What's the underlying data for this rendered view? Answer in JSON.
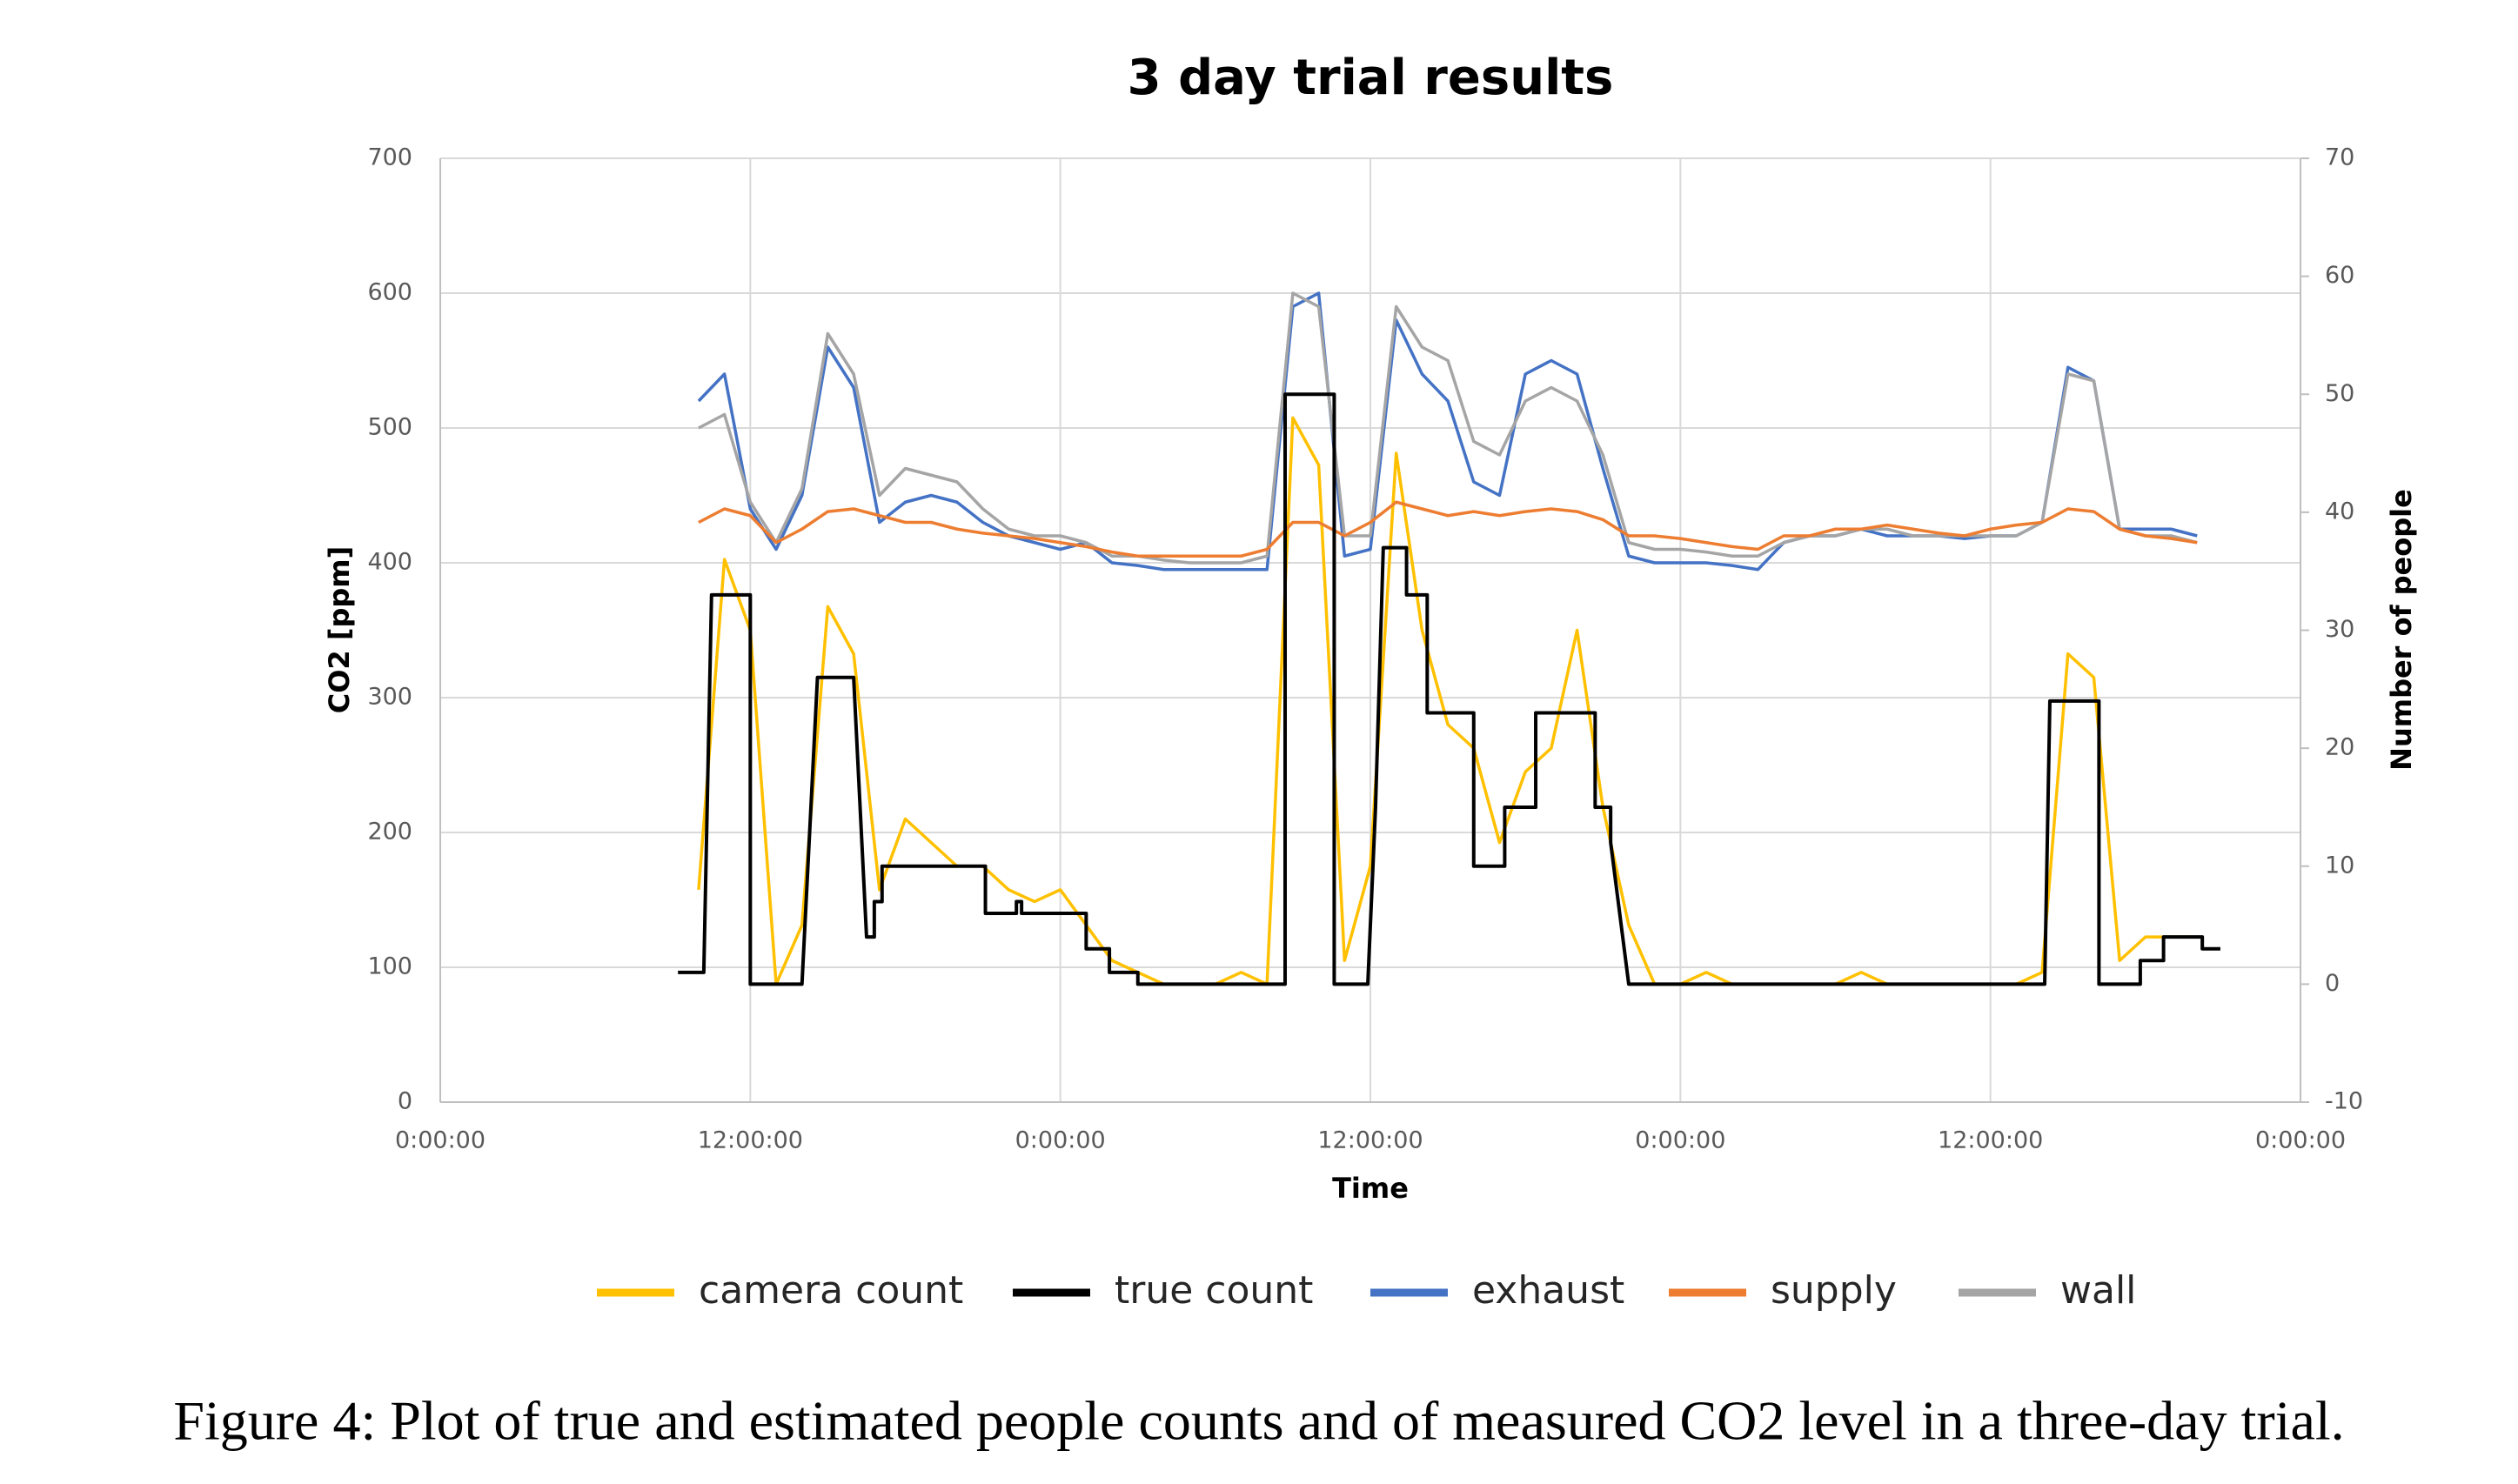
{
  "chart_data": {
    "type": "line",
    "title": "3 day trial results",
    "x_label": "Time",
    "y_label": "CO2 [ppm]",
    "y2_label": "Number of people",
    "xlim": [
      0,
      72
    ],
    "xticks": [
      {
        "value": 0,
        "label": "0:00:00"
      },
      {
        "value": 12,
        "label": "12:00:00"
      },
      {
        "value": 24,
        "label": "0:00:00"
      },
      {
        "value": 36,
        "label": "12:00:00"
      },
      {
        "value": 48,
        "label": "0:00:00"
      },
      {
        "value": 60,
        "label": "12:00:00"
      },
      {
        "value": 72,
        "label": "0:00:00"
      }
    ],
    "ylim": [
      0,
      700
    ],
    "yticks": [
      0,
      100,
      200,
      300,
      400,
      500,
      600,
      700
    ],
    "y2lim": [
      -10,
      70
    ],
    "y2ticks": [
      -10,
      0,
      10,
      20,
      30,
      40,
      50,
      60,
      70
    ],
    "grid": true,
    "legend": "bottom",
    "x": [
      10,
      11,
      12,
      13,
      14,
      15,
      16,
      17,
      18,
      19,
      20,
      21,
      22,
      23,
      24,
      25,
      26,
      27,
      28,
      29,
      30,
      31,
      32,
      33,
      34,
      35,
      36,
      37,
      38,
      39,
      40,
      41,
      42,
      43,
      44,
      45,
      46,
      47,
      48,
      49,
      50,
      51,
      52,
      53,
      54,
      55,
      56,
      57,
      58,
      59,
      60,
      61,
      62,
      63,
      64,
      65,
      66,
      67,
      68
    ],
    "series": [
      {
        "name": "camera count",
        "color": "#ffc000",
        "axis": "y2",
        "values": [
          8,
          36,
          30,
          0,
          5,
          32,
          28,
          8,
          14,
          12,
          10,
          10,
          8,
          7,
          8,
          5,
          2,
          1,
          0,
          0,
          0,
          1,
          0,
          48,
          44,
          2,
          10,
          45,
          30,
          22,
          20,
          12,
          18,
          20,
          30,
          15,
          5,
          0,
          0,
          1,
          0,
          0,
          0,
          0,
          0,
          1,
          0,
          0,
          0,
          0,
          0,
          0,
          1,
          28,
          26,
          2,
          4,
          4,
          4
        ]
      },
      {
        "name": "true count",
        "color": "#000000",
        "axis": "y2",
        "x": [
          9.2,
          10.2,
          10.5,
          12.0,
          12.0,
          14.0,
          14.6,
          16.0,
          16.5,
          16.8,
          16.8,
          17.1,
          17.1,
          21.1,
          21.1,
          22.3,
          22.3,
          22.5,
          22.5,
          25.0,
          25.0,
          25.9,
          25.9,
          27.0,
          27.0,
          32.7,
          32.7,
          34.6,
          34.6,
          35.9,
          36.2,
          36.5,
          37.4,
          37.4,
          38.2,
          38.2,
          40.0,
          40.0,
          41.2,
          41.2,
          42.4,
          42.4,
          44.7,
          44.7,
          45.3,
          45.3,
          46.0,
          62.1,
          62.3,
          64.2,
          64.2,
          65.8,
          65.8,
          66.7,
          66.7,
          68.2,
          68.2,
          68.9
        ],
        "values": [
          1,
          1,
          33,
          33,
          0,
          0,
          26,
          26,
          4,
          4,
          7,
          7,
          10,
          10,
          6,
          6,
          7,
          7,
          6,
          6,
          3,
          3,
          1,
          1,
          0,
          0,
          50,
          50,
          0,
          0,
          15,
          37,
          37,
          33,
          33,
          23,
          23,
          10,
          10,
          15,
          15,
          23,
          23,
          15,
          15,
          12,
          0,
          0,
          24,
          24,
          0,
          0,
          2,
          2,
          4,
          4,
          3,
          3
        ]
      },
      {
        "name": "exhaust",
        "color": "#4472c4",
        "axis": "y",
        "values": [
          520,
          540,
          440,
          410,
          450,
          560,
          530,
          430,
          445,
          450,
          445,
          430,
          420,
          415,
          410,
          415,
          400,
          398,
          395,
          395,
          395,
          395,
          395,
          590,
          600,
          405,
          410,
          580,
          540,
          520,
          460,
          450,
          540,
          550,
          540,
          470,
          405,
          400,
          400,
          400,
          398,
          395,
          415,
          420,
          420,
          425,
          420,
          420,
          420,
          418,
          420,
          420,
          430,
          545,
          535,
          425,
          425,
          425,
          420
        ]
      },
      {
        "name": "supply",
        "color": "#ed7d31",
        "axis": "y",
        "values": [
          430,
          440,
          435,
          415,
          425,
          438,
          440,
          435,
          430,
          430,
          425,
          422,
          420,
          418,
          415,
          412,
          408,
          405,
          405,
          405,
          405,
          405,
          410,
          430,
          430,
          420,
          430,
          445,
          440,
          435,
          438,
          435,
          438,
          440,
          438,
          432,
          420,
          420,
          418,
          415,
          412,
          410,
          420,
          420,
          425,
          425,
          428,
          425,
          422,
          420,
          425,
          428,
          430,
          440,
          438,
          425,
          420,
          418,
          415
        ]
      },
      {
        "name": "wall",
        "color": "#a5a5a5",
        "axis": "y",
        "values": [
          500,
          510,
          445,
          415,
          455,
          570,
          540,
          450,
          470,
          465,
          460,
          440,
          425,
          420,
          420,
          415,
          405,
          405,
          402,
          400,
          400,
          400,
          405,
          600,
          590,
          420,
          420,
          590,
          560,
          550,
          490,
          480,
          520,
          530,
          520,
          480,
          415,
          410,
          410,
          408,
          405,
          405,
          415,
          420,
          420,
          425,
          425,
          420,
          420,
          420,
          420,
          420,
          430,
          540,
          535,
          425,
          420,
          420,
          415
        ]
      }
    ]
  },
  "caption": "Figure 4: Plot of true and estimated people counts and of measured CO2 level in a three-day trial."
}
